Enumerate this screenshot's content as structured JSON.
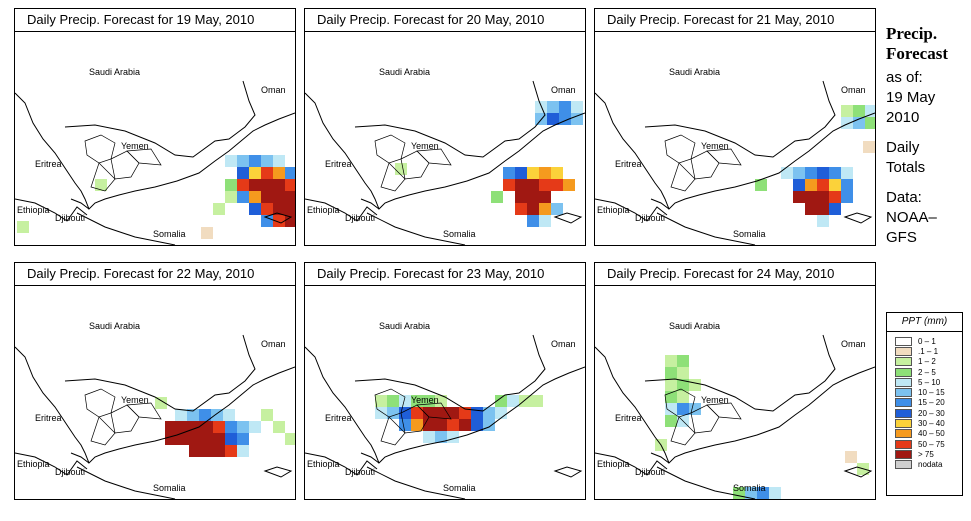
{
  "panels": [
    {
      "title": "Daily Precip. Forecast for  19 May, 2010",
      "countries": [
        "Saudi Arabia",
        "Oman",
        "Yemen",
        "Eritrea",
        "Ethiopia",
        "Djibouti",
        "Somalia"
      ]
    },
    {
      "title": "Daily Precip. Forecast for  20 May, 2010",
      "countries": [
        "Saudi Arabia",
        "Oman",
        "Yemen",
        "Eritrea",
        "Ethiopia",
        "Djibouti",
        "Somalia"
      ]
    },
    {
      "title": "Daily Precip. Forecast for  21 May, 2010",
      "countries": [
        "Saudi Arabia",
        "Oman",
        "Yemen",
        "Eritrea",
        "Ethiopia",
        "Djibouti",
        "Somalia"
      ]
    },
    {
      "title": "Daily Precip. Forecast for  22 May, 2010",
      "countries": [
        "Saudi Arabia",
        "Oman",
        "Yemen",
        "Eritrea",
        "Ethiopia",
        "Djibouti",
        "Somalia"
      ]
    },
    {
      "title": "Daily Precip. Forecast for  23 May, 2010",
      "countries": [
        "Saudi Arabia",
        "Oman",
        "Yemen",
        "Eritrea",
        "Ethiopia",
        "Djibouti",
        "Somalia"
      ]
    },
    {
      "title": "Daily Precip. Forecast for  24 May, 2010",
      "countries": [
        "Saudi Arabia",
        "Oman",
        "Yemen",
        "Eritrea",
        "Ethiopia",
        "Djibouti",
        "Somalia"
      ]
    }
  ],
  "sidebar": {
    "title_line1": "Precip.",
    "title_line2": "Forecast",
    "asof_line1": "as of:",
    "asof_line2": "19 May",
    "asof_line3": "2010",
    "totals_line1": "Daily",
    "totals_line2": "Totals",
    "data_line1": "Data:",
    "data_line2": "NOAA–",
    "data_line3": "GFS"
  },
  "legend": {
    "title": "PPT (mm)",
    "classes": [
      {
        "label": "0 – 1",
        "color": "#ffffff"
      },
      {
        "label": ".1 – 1",
        "color": "#f1dcc0"
      },
      {
        "label": "1 – 2",
        "color": "#c6f0a0"
      },
      {
        "label": "2 – 5",
        "color": "#8ee078"
      },
      {
        "label": "5 – 10",
        "color": "#bfe8f5"
      },
      {
        "label": "10 – 15",
        "color": "#7cc2f0"
      },
      {
        "label": "15 – 20",
        "color": "#3f8fe8"
      },
      {
        "label": "20 – 30",
        "color": "#1f5ed8"
      },
      {
        "label": "30 – 40",
        "color": "#fbd23a"
      },
      {
        "label": "40 – 50",
        "color": "#f59a1e"
      },
      {
        "label": "50 – 75",
        "color": "#e53a18"
      },
      {
        "label": "> 75",
        "color": "#a01812"
      },
      {
        "label": "nodata",
        "color": "#cfcfcf"
      }
    ]
  }
}
